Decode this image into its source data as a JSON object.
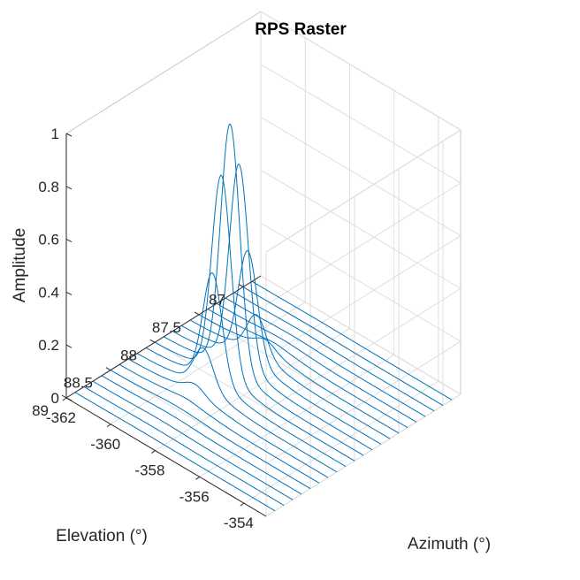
{
  "chart_data": {
    "type": "line",
    "title": "RPS Raster",
    "xlabel": "Azimuth (°)",
    "ylabel": "Elevation (°)",
    "zlabel": "Amplitude",
    "xlim": [
      -362,
      -353
    ],
    "ylim": [
      86.8,
      89
    ],
    "zlim": [
      0,
      1
    ],
    "x_ticks": [
      -362,
      -360,
      -358,
      -356,
      -354
    ],
    "x_tick_labels": [
      "-362",
      "-360",
      "-358",
      "-356",
      "-354"
    ],
    "y_ticks": [
      87,
      87.5,
      88,
      88.5,
      89
    ],
    "y_tick_labels": [
      "87",
      "87.5",
      "88",
      "88.5",
      "89"
    ],
    "z_ticks": [
      0,
      0.2,
      0.4,
      0.6,
      0.8,
      1
    ],
    "z_tick_labels": [
      "0",
      "0.2",
      "0.4",
      "0.6",
      "0.8",
      "1"
    ],
    "grid": true,
    "line_color": "#0072bd",
    "raster": {
      "elevations": [
        86.9,
        87.0,
        87.1,
        87.2,
        87.3,
        87.4,
        87.5,
        87.6,
        87.7,
        87.8,
        87.9,
        88.0,
        88.1,
        88.2,
        88.3,
        88.4,
        88.5,
        88.6,
        88.7,
        88.8,
        88.9
      ],
      "azimuth_start": -362,
      "azimuth_end": -353,
      "peak_azimuth": -359.0,
      "peak_elevation": 87.9,
      "peak_amplitude": 0.92,
      "azimuth_beamwidth": 0.6,
      "elevation_beamwidth": 0.22,
      "sidelobe_level": 0.035
    }
  }
}
